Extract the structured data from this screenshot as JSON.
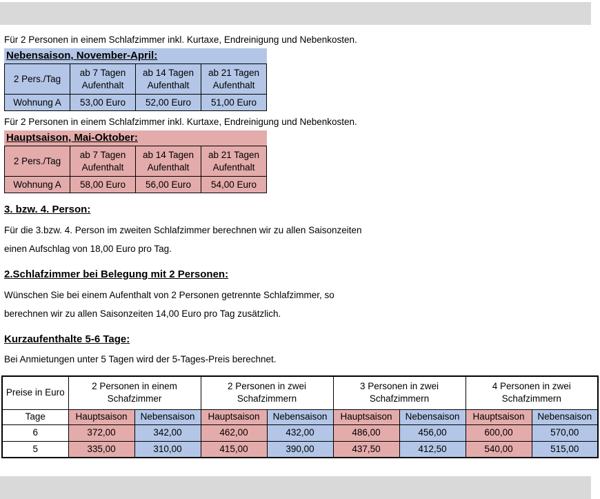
{
  "colors": {
    "nebensaison_fill": "#b3c6e7",
    "hauptsaison_fill": "#e4abab",
    "bar_fill": "#d9d9d9"
  },
  "sections": {
    "nebensaison": {
      "intro": "Für 2 Personen in einem Schlafzimmer inkl. Kurtaxe, Endreinigung und Nebenkosten.",
      "title": "Nebensaison, November-April:",
      "table": {
        "headers": [
          "2 Pers./Tag",
          "ab 7 Tagen Aufenthalt",
          "ab 14 Tagen Aufenthalt",
          "ab 21 Tagen Aufenthalt"
        ],
        "row": [
          "Wohnung A",
          "53,00 Euro",
          "52,00 Euro",
          "51,00 Euro"
        ]
      }
    },
    "hauptsaison": {
      "intro": "Für 2 Personen in einem Schlafzimmer inkl. Kurtaxe, Endreinigung und Nebenkosten.",
      "title": "Hauptsaison, Mai-Oktober:",
      "table": {
        "headers": [
          "2 Pers./Tag",
          "ab 7 Tagen Aufenthalt",
          "ab 14 Tagen Aufenthalt",
          "ab 21 Tagen Aufenthalt"
        ],
        "row": [
          "Wohnung A",
          "58,00 Euro",
          "56,00 Euro",
          "54,00 Euro"
        ]
      }
    },
    "extra_person": {
      "title": "3. bzw. 4. Person:",
      "line1": "Für die 3.bzw. 4. Person im zweiten Schlafzimmer berechnen wir zu allen Saisonzeiten",
      "line2": "einen Aufschlag von 18,00 Euro pro Tag."
    },
    "second_bedroom": {
      "title": "2.Schlafzimmer bei Belegung mit 2 Personen:",
      "line1": "Wünschen Sie bei einem Aufenthalt von 2 Personen getrennte Schlafzimmer, so",
      "line2": "berechnen wir zu allen Saisonzeiten 14,00 Euro pro Tag zusätzlich."
    },
    "short_stay": {
      "title": "Kurzaufenthalte 5-6 Tage:",
      "text": "Bei Anmietungen unter 5 Tagen wird der 5-Tages-Preis berechnet."
    }
  },
  "price_table": {
    "corner": "Preise in Euro",
    "groups": [
      "2 Personen in einem Schafzimmer",
      "2 Personen in zwei Schafzimmern",
      "3 Personen in zwei Schafzimmern",
      "4 Personen in zwei Schafzimmern"
    ],
    "tage_label": "Tage",
    "season_labels": [
      "Hauptsaison",
      "Nebensaison"
    ],
    "rows": [
      {
        "tage": "6",
        "values": [
          "372,00",
          "342,00",
          "462,00",
          "432,00",
          "486,00",
          "456,00",
          "600,00",
          "570,00"
        ]
      },
      {
        "tage": "5",
        "values": [
          "335,00",
          "310,00",
          "415,00",
          "390,00",
          "437,50",
          "412,50",
          "540,00",
          "515,00"
        ]
      }
    ]
  }
}
